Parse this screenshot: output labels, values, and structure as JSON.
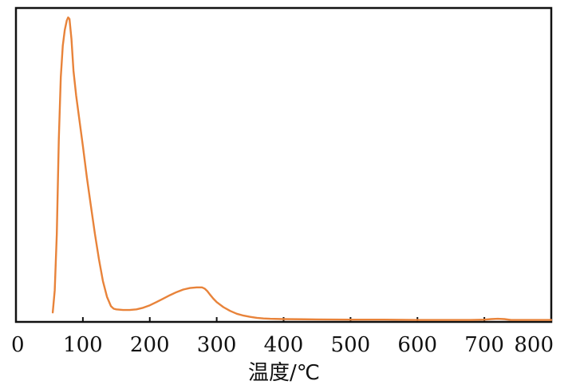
{
  "chart_data": {
    "type": "line",
    "xlabel": "温度/℃",
    "ylabel": "",
    "xlim": [
      0,
      800
    ],
    "ylim": [
      0,
      100
    ],
    "x_ticks": [
      "0",
      "100",
      "200",
      "300",
      "400",
      "500",
      "600",
      "700",
      "800"
    ],
    "y_ticks_shown": false,
    "grid": false,
    "line_color": "#e8833a",
    "series": [
      {
        "x": [
          55,
          58,
          61,
          64,
          67,
          70,
          73,
          76,
          78,
          80,
          83,
          86,
          90,
          95,
          100,
          106,
          112,
          118,
          124,
          130,
          136,
          142,
          146,
          150,
          160,
          170,
          180,
          190,
          200,
          210,
          220,
          230,
          240,
          250,
          260,
          270,
          278,
          282,
          286,
          290,
          295,
          300,
          310,
          320,
          330,
          340,
          350,
          360,
          370,
          380,
          400,
          450,
          500,
          550,
          600,
          650,
          680,
          700,
          710,
          720,
          730,
          740,
          750,
          760,
          780,
          800
        ],
        "y": [
          3,
          10,
          28,
          58,
          78,
          88,
          93,
          96,
          97,
          96.5,
          90,
          80,
          72,
          64,
          56,
          46,
          37,
          28,
          20,
          13,
          8,
          5,
          4.2,
          4,
          3.8,
          3.8,
          4.0,
          4.5,
          5.3,
          6.3,
          7.4,
          8.5,
          9.5,
          10.3,
          10.8,
          11.0,
          11.0,
          10.6,
          9.8,
          8.7,
          7.4,
          6.3,
          4.7,
          3.5,
          2.6,
          2.0,
          1.6,
          1.3,
          1.1,
          1.0,
          0.9,
          0.8,
          0.7,
          0.7,
          0.6,
          0.6,
          0.6,
          0.7,
          0.9,
          1.0,
          0.9,
          0.6,
          0.6,
          0.6,
          0.6,
          0.6
        ]
      }
    ]
  }
}
